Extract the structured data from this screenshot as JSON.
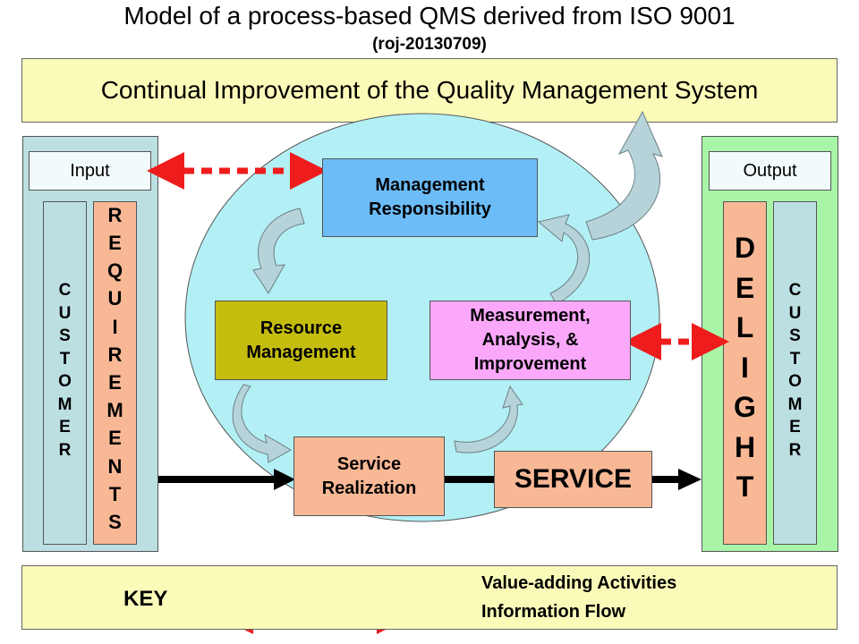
{
  "header": {
    "title": "Model of a process-based QMS derived from ISO 9001",
    "subtitle": "(roj-20130709)"
  },
  "banner": {
    "text": "Continual Improvement of the Quality Management System"
  },
  "left_panel": {
    "label": "Input",
    "customer": [
      "C",
      "U",
      "S",
      "T",
      "O",
      "M",
      "E",
      "R"
    ],
    "requirements": [
      "R",
      "E",
      "Q",
      "U",
      "I",
      "R",
      "E",
      "M",
      "E",
      "N",
      "T",
      "S"
    ]
  },
  "right_panel": {
    "label": "Output",
    "delight": [
      "D",
      "E",
      "L",
      "I",
      "G",
      "H",
      "T"
    ],
    "customer": [
      "C",
      "U",
      "S",
      "T",
      "O",
      "M",
      "E",
      "R"
    ]
  },
  "processes": {
    "management": [
      "Management",
      "Responsibility"
    ],
    "resource": [
      "Resource",
      "Management"
    ],
    "measurement": [
      "Measurement,",
      "Analysis, &",
      "Improvement"
    ],
    "realization": [
      "Service",
      "Realization"
    ],
    "service": "SERVICE"
  },
  "key": {
    "label": "KEY",
    "value_adding": "Value-adding Activities",
    "information_flow": "Information Flow"
  },
  "colors": {
    "banner": "#fbfbb9",
    "input_panel": "#bcdfe2",
    "output_panel": "#a8f5a8",
    "circle": "#b3f0f5",
    "management_box": "#6cbcf8",
    "resource_box": "#c5bd0e",
    "measurement_box": "#fba8fb",
    "realization_box": "#f8b896",
    "info_flow_arrow": "#ee1c1c",
    "cycle_arrow": "#b7d3da"
  }
}
